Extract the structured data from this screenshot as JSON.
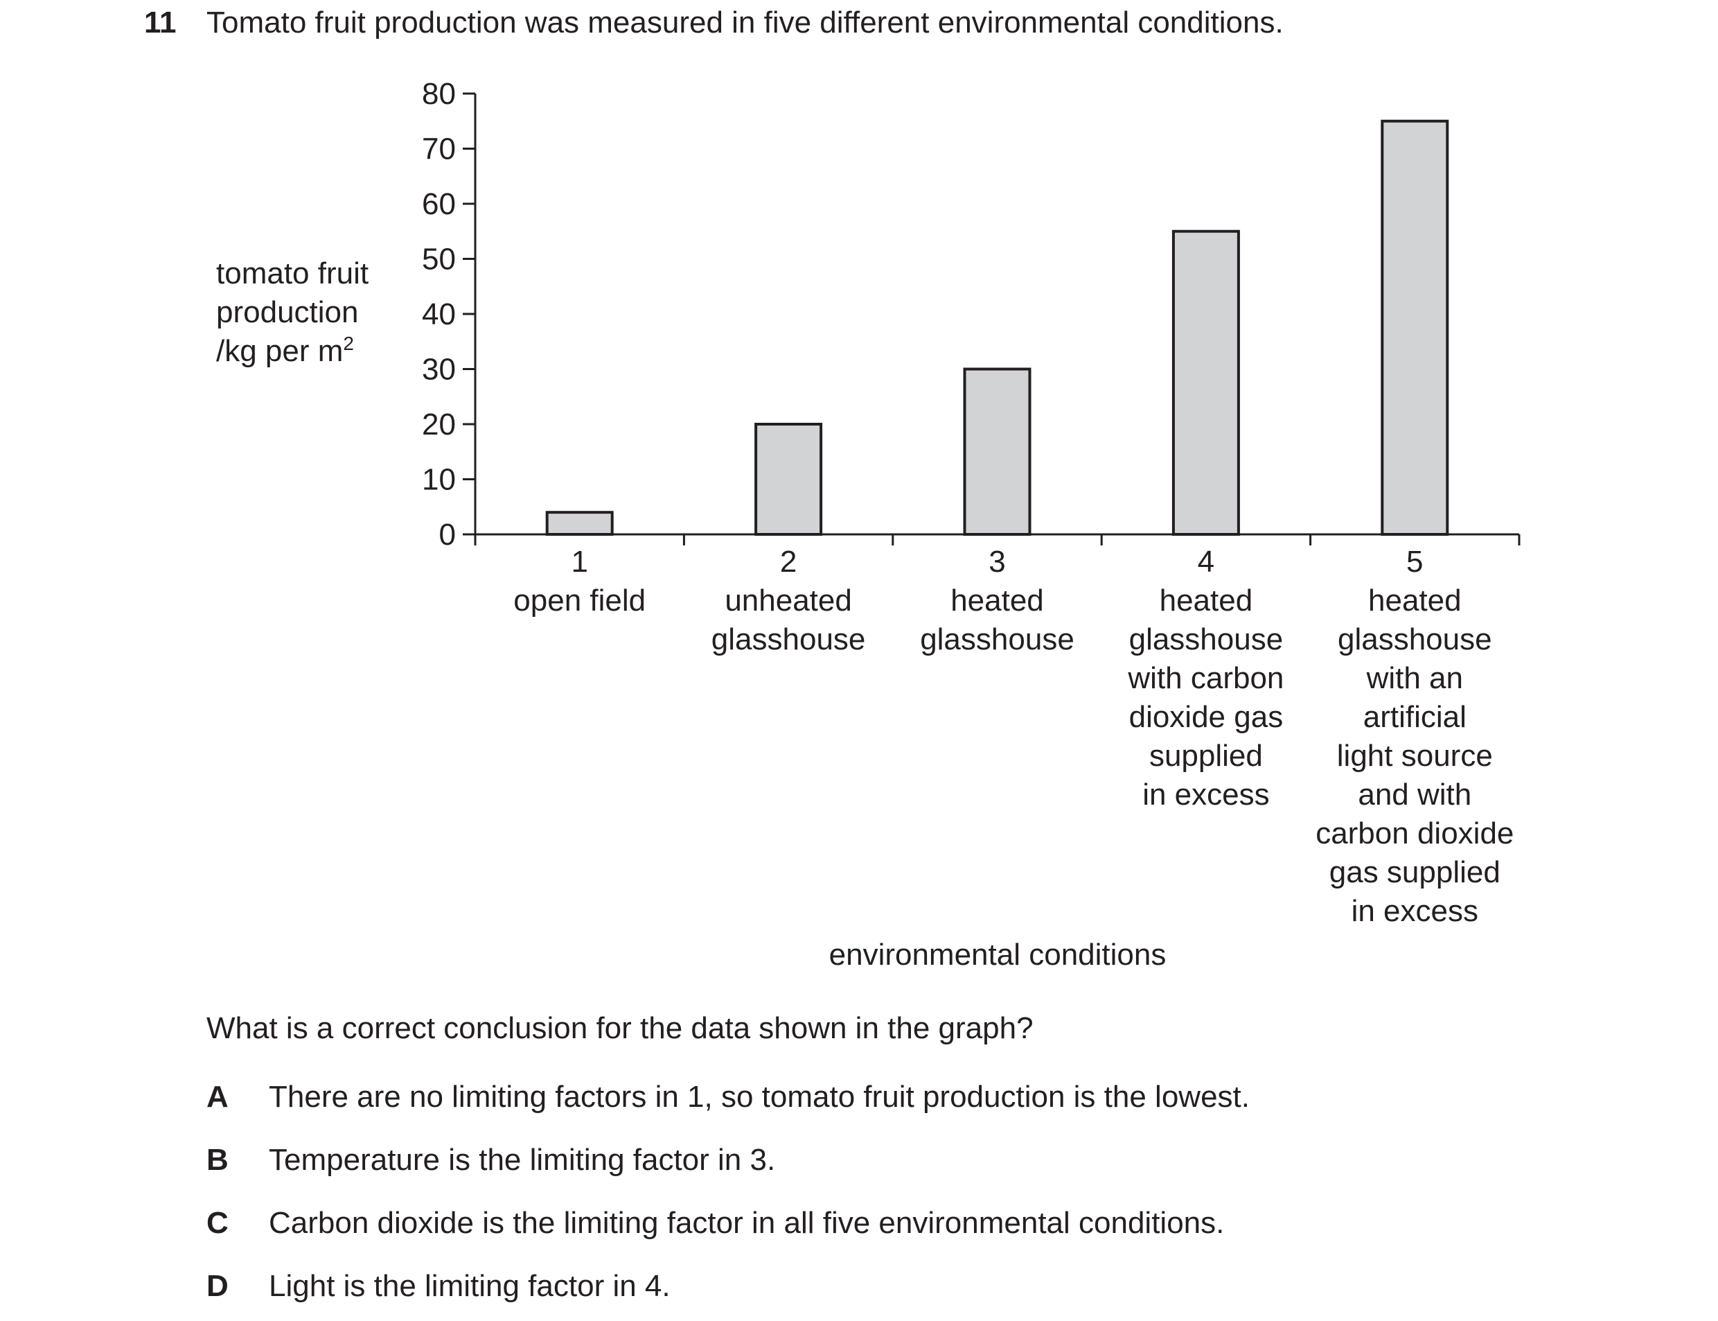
{
  "question": {
    "number": "11",
    "stem": "Tomato fruit production was measured in five different environmental conditions.",
    "prompt": "What is a correct conclusion for the data shown in the graph?",
    "options": [
      {
        "letter": "A",
        "text": "There are no limiting factors in 1, so tomato fruit production is the lowest."
      },
      {
        "letter": "B",
        "text": "Temperature is the limiting factor in 3."
      },
      {
        "letter": "C",
        "text": "Carbon dioxide is the limiting factor in all five environmental conditions."
      },
      {
        "letter": "D",
        "text": "Light is the limiting factor in 4."
      }
    ]
  },
  "chart_data": {
    "type": "bar",
    "categories": [
      "1",
      "2",
      "3",
      "4",
      "5"
    ],
    "category_descriptions": [
      [
        "open field"
      ],
      [
        "unheated",
        "glasshouse"
      ],
      [
        "heated",
        "glasshouse"
      ],
      [
        "heated",
        "glasshouse",
        "with carbon",
        "dioxide gas",
        "supplied",
        "in excess"
      ],
      [
        "heated",
        "glasshouse",
        "with an",
        "artificial",
        "light source",
        "and with",
        "carbon dioxide",
        "gas supplied",
        "in excess"
      ]
    ],
    "values": [
      4,
      20,
      30,
      55,
      75
    ],
    "ylabel_lines": [
      "tomato fruit",
      "production",
      "/kg per m"
    ],
    "ylabel_superscript": "2",
    "xlabel": "environmental conditions",
    "ylim": [
      0,
      80
    ],
    "yticks": [
      0,
      10,
      20,
      30,
      40,
      50,
      60,
      70,
      80
    ],
    "bar_fill": "#d1d3d4",
    "line_color": "#231f20"
  }
}
